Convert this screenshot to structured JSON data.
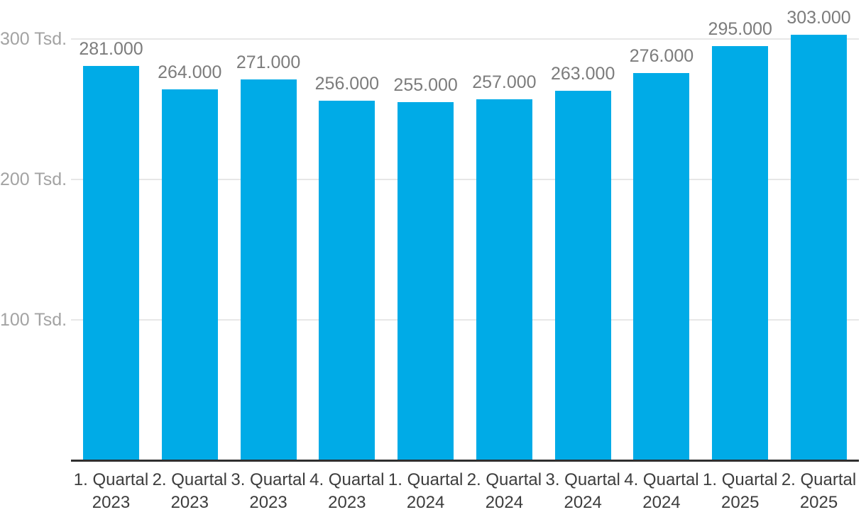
{
  "chart_data": {
    "type": "bar",
    "title": "",
    "xlabel": "",
    "ylabel": "",
    "categories": [
      {
        "quarter": "1. Quartal",
        "year": "2023"
      },
      {
        "quarter": "2. Quartal",
        "year": "2023"
      },
      {
        "quarter": "3. Quartal",
        "year": "2023"
      },
      {
        "quarter": "4. Quartal",
        "year": "2023"
      },
      {
        "quarter": "1. Quartal",
        "year": "2024"
      },
      {
        "quarter": "2. Quartal",
        "year": "2024"
      },
      {
        "quarter": "3. Quartal",
        "year": "2024"
      },
      {
        "quarter": "4. Quartal",
        "year": "2024"
      },
      {
        "quarter": "1. Quartal",
        "year": "2025"
      },
      {
        "quarter": "2. Quartal",
        "year": "2025"
      }
    ],
    "values": [
      281000,
      264000,
      271000,
      256000,
      255000,
      257000,
      263000,
      276000,
      295000,
      303000
    ],
    "value_labels": [
      "281.000",
      "264.000",
      "271.000",
      "256.000",
      "255.000",
      "257.000",
      "263.000",
      "276.000",
      "295.000",
      "303.000"
    ],
    "y_ticks": [
      {
        "value": 100000,
        "label": "100 Tsd."
      },
      {
        "value": 200000,
        "label": "200 Tsd."
      },
      {
        "value": 300000,
        "label": "300 Tsd."
      }
    ],
    "ylim": [
      0,
      328000
    ],
    "ytick_interval": 100000,
    "grid": "horizontal",
    "legend": "none",
    "colors": {
      "bar": "#00abe7",
      "gridline": "#e7e7e7",
      "axis_line": "#2f2f2f",
      "y_tick_text": "#a3a3a3",
      "value_label_text": "#7c7c7c",
      "x_tick_text": "#3d3d3d",
      "background": "#ffffff"
    }
  }
}
